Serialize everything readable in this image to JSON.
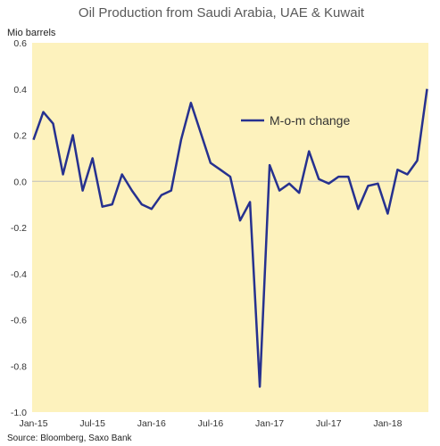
{
  "chart_data": {
    "type": "line",
    "title": "Oil Production from Saudi Arabia, UAE & Kuwait",
    "ylabel": "Mio barrels",
    "ylim": [
      -1.0,
      0.6
    ],
    "yticks": [
      0.6,
      0.4,
      0.2,
      0.0,
      -0.2,
      -0.4,
      -0.6,
      -0.8,
      -1.0
    ],
    "ytick_labels": [
      "0.6",
      "0.4",
      "0.2",
      "0.0",
      "-0.2",
      "-0.4",
      "-0.6",
      "-0.8",
      "-1.0"
    ],
    "xtick_labels": [
      "Jan-15",
      "Jul-15",
      "Jan-16",
      "Jul-16",
      "Jan-17",
      "Jul-17",
      "Jan-18"
    ],
    "x": [
      "Jan-15",
      "Feb-15",
      "Mar-15",
      "Apr-15",
      "May-15",
      "Jun-15",
      "Jul-15",
      "Aug-15",
      "Sep-15",
      "Oct-15",
      "Nov-15",
      "Dec-15",
      "Jan-16",
      "Feb-16",
      "Mar-16",
      "Apr-16",
      "May-16",
      "Jun-16",
      "Jul-16",
      "Aug-16",
      "Sep-16",
      "Oct-16",
      "Nov-16",
      "Dec-16",
      "Jan-17",
      "Feb-17",
      "Mar-17",
      "Apr-17",
      "May-17",
      "Jun-17",
      "Jul-17",
      "Aug-17",
      "Sep-17",
      "Oct-17",
      "Nov-17",
      "Dec-17",
      "Jan-18",
      "Feb-18",
      "Mar-18",
      "Apr-18",
      "May-18"
    ],
    "series": [
      {
        "name": "M-o-m change",
        "values": [
          0.18,
          0.3,
          0.25,
          0.03,
          0.2,
          -0.04,
          0.1,
          -0.11,
          -0.1,
          0.03,
          -0.04,
          -0.1,
          -0.12,
          -0.06,
          -0.04,
          0.18,
          0.34,
          0.21,
          0.08,
          0.05,
          0.02,
          -0.17,
          -0.09,
          -0.89,
          0.07,
          -0.04,
          -0.01,
          -0.05,
          0.13,
          0.01,
          -0.01,
          0.02,
          0.02,
          -0.12,
          -0.02,
          -0.01,
          -0.14,
          0.05,
          0.03,
          0.09,
          0.4
        ]
      }
    ],
    "grid": false,
    "legend_position": "inside-top-right",
    "source": "Source: Bloomberg, Saxo Bank",
    "colors": {
      "line": "#26318f",
      "plot_background": "#fdf2bd",
      "page_background": "#ffffff",
      "axis": "#bfbfbf"
    }
  }
}
